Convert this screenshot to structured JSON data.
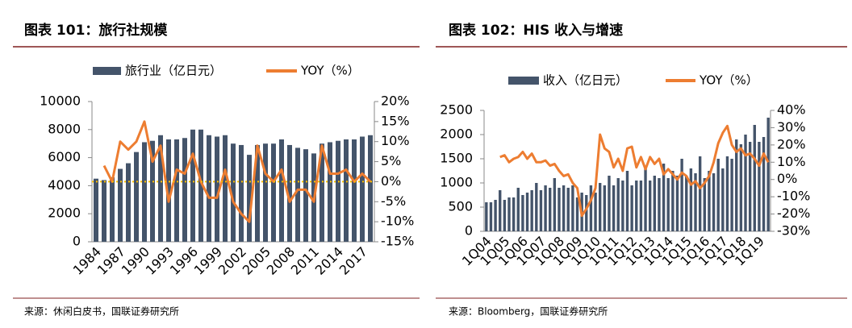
{
  "chart_data": [
    {
      "type": "combo",
      "title": "图表 101：旅行社规模",
      "source": "来源：休闲白皮书，国联证券研究所",
      "categories": [
        "1984",
        null,
        null,
        "1987",
        null,
        null,
        "1990",
        null,
        null,
        "1993",
        null,
        null,
        "1996",
        null,
        null,
        "1999",
        null,
        null,
        "2002",
        null,
        null,
        "2005",
        null,
        null,
        "2008",
        null,
        null,
        "2011",
        null,
        null,
        "2014",
        null,
        null,
        "2017",
        null
      ],
      "series": [
        {
          "name": "旅行业（亿日元）",
          "type": "bar",
          "color": "#44546a",
          "values": [
            4500,
            4400,
            4600,
            5200,
            5600,
            6400,
            7100,
            7200,
            7600,
            7300,
            7300,
            7400,
            8000,
            8000,
            7600,
            7500,
            7600,
            7000,
            6900,
            6200,
            6900,
            7000,
            7000,
            7300,
            6900,
            6700,
            6600,
            6300,
            7000,
            7100,
            7200,
            7300,
            7300,
            7500,
            7600
          ]
        },
        {
          "name": "YOY（%）",
          "type": "line",
          "axis": "y2",
          "color": "#ed7d31",
          "values": [
            null,
            4,
            0,
            10,
            8,
            10,
            15,
            5,
            9,
            -5,
            3,
            2,
            7,
            0,
            -4,
            -4,
            3,
            -5,
            -8,
            -10,
            9,
            2,
            0,
            3,
            -5,
            -2,
            -2,
            -5,
            9,
            2,
            2,
            3,
            0,
            2,
            0
          ]
        }
      ],
      "hline": {
        "axis": "y2",
        "value": 0,
        "color": "#ffc000"
      },
      "ylim": [
        0,
        10000
      ],
      "yticks": [
        0,
        2000,
        4000,
        6000,
        8000,
        10000
      ],
      "y2lim": [
        -15,
        20
      ],
      "y2ticks": [
        {
          "value": -15,
          "label": "-15%"
        },
        {
          "value": -10,
          "label": "-10%"
        },
        {
          "value": -5,
          "label": "-5%"
        },
        {
          "value": 0,
          "label": "0%"
        },
        {
          "value": 5,
          "label": "5%"
        },
        {
          "value": 10,
          "label": "10%"
        },
        {
          "value": 15,
          "label": "15%"
        },
        {
          "value": 20,
          "label": "20%"
        }
      ]
    },
    {
      "type": "combo",
      "title": "图表 102：HIS 收入与增速",
      "source": "来源：Bloomberg，国联证券研究所",
      "categories": [
        "1Q04",
        null,
        null,
        null,
        "1Q05",
        null,
        null,
        null,
        "1Q06",
        null,
        null,
        null,
        "1Q07",
        null,
        null,
        null,
        "1Q08",
        null,
        null,
        null,
        "1Q09",
        null,
        null,
        null,
        "1Q10",
        null,
        null,
        null,
        "1Q11",
        null,
        null,
        null,
        "1Q12",
        null,
        null,
        null,
        "1Q13",
        null,
        null,
        null,
        "1Q14",
        null,
        null,
        null,
        "1Q15",
        null,
        null,
        null,
        "1Q16",
        null,
        null,
        null,
        "1Q17",
        null,
        null,
        null,
        "1Q18",
        null,
        null,
        null,
        "1Q19",
        null,
        null
      ],
      "series": [
        {
          "name": "收入（亿日元）",
          "type": "bar",
          "color": "#44546a",
          "values": [
            600,
            600,
            650,
            850,
            650,
            700,
            700,
            900,
            750,
            800,
            850,
            1000,
            850,
            950,
            900,
            1100,
            900,
            950,
            900,
            950,
            700,
            800,
            750,
            950,
            800,
            1000,
            950,
            1150,
            950,
            1100,
            1050,
            1250,
            950,
            1050,
            1050,
            1350,
            1050,
            1150,
            1100,
            1400,
            1100,
            1250,
            1150,
            1500,
            1150,
            1300,
            1200,
            1550,
            1100,
            1250,
            1200,
            1500,
            1300,
            1550,
            1500,
            1900,
            1800,
            2000,
            1850,
            2200,
            1850,
            1950,
            2350
          ]
        },
        {
          "name": "YOY（%）",
          "type": "line",
          "axis": "y2",
          "color": "#ed7d31",
          "values": [
            null,
            null,
            null,
            13,
            14,
            10,
            12,
            13,
            16,
            12,
            15,
            10,
            10,
            11,
            8,
            9,
            5,
            2,
            3,
            -2,
            -5,
            -21,
            -17,
            -12,
            -5,
            26,
            18,
            16,
            7,
            12,
            5,
            18,
            19,
            7,
            13,
            6,
            13,
            9,
            12,
            3,
            6,
            3,
            0,
            4,
            2,
            -3,
            -1,
            -5,
            -2,
            2,
            10,
            21,
            27,
            31,
            20,
            16,
            18,
            14,
            15,
            12,
            8,
            15,
            10
          ]
        }
      ],
      "ylim": [
        0,
        2500
      ],
      "yticks": [
        0,
        500,
        1000,
        1500,
        2000,
        2500
      ],
      "y2lim": [
        -30,
        40
      ],
      "y2ticks": [
        {
          "value": -30,
          "label": "-30%"
        },
        {
          "value": -20,
          "label": "-20%"
        },
        {
          "value": -10,
          "label": "-10%"
        },
        {
          "value": 0,
          "label": "0%"
        },
        {
          "value": 10,
          "label": "10%"
        },
        {
          "value": 20,
          "label": "20%"
        },
        {
          "value": 30,
          "label": "30%"
        },
        {
          "value": 40,
          "label": "40%"
        }
      ]
    }
  ]
}
